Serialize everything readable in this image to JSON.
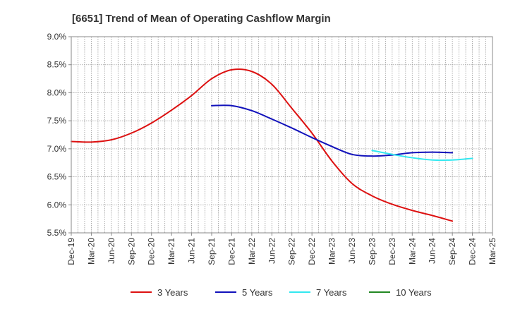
{
  "chart_data": {
    "type": "line",
    "title": "[6651]  Trend of Mean of Operating Cashflow Margin",
    "xlabel": "",
    "ylabel": "",
    "ylim": [
      5.5,
      9.0
    ],
    "y_ticks": [
      5.5,
      6.0,
      6.5,
      7.0,
      7.5,
      8.0,
      8.5,
      9.0
    ],
    "y_tick_labels": [
      "5.5%",
      "6.0%",
      "6.5%",
      "7.0%",
      "7.5%",
      "8.0%",
      "8.5%",
      "9.0%"
    ],
    "x_tick_labels": [
      "Dec-19",
      "Mar-20",
      "Jun-20",
      "Sep-20",
      "Dec-20",
      "Mar-21",
      "Jun-21",
      "Sep-21",
      "Dec-21",
      "Mar-22",
      "Jun-22",
      "Sep-22",
      "Dec-22",
      "Mar-23",
      "Jun-23",
      "Sep-23",
      "Dec-23",
      "Mar-24",
      "Jun-24",
      "Sep-24",
      "Dec-24",
      "Mar-25"
    ],
    "grid": true,
    "legend_position": "bottom",
    "series": [
      {
        "name": "3 Years",
        "color": "#dd1111",
        "start_index": 0,
        "values": [
          7.13,
          7.12,
          7.16,
          7.28,
          7.46,
          7.69,
          7.95,
          8.25,
          8.41,
          8.38,
          8.15,
          7.72,
          7.28,
          6.78,
          6.38,
          6.16,
          6.01,
          5.9,
          5.81,
          5.71
        ]
      },
      {
        "name": "5 Years",
        "color": "#1111bb",
        "start_index": 7,
        "values": [
          7.77,
          7.77,
          7.68,
          7.53,
          7.37,
          7.2,
          7.04,
          6.9,
          6.87,
          6.89,
          6.93,
          6.94,
          6.93
        ]
      },
      {
        "name": "7 Years",
        "color": "#33e8f0",
        "start_index": 15,
        "values": [
          6.97,
          6.9,
          6.84,
          6.8,
          6.8,
          6.83
        ]
      },
      {
        "name": "10 Years",
        "color": "#228822",
        "start_index": 0,
        "values": []
      }
    ]
  }
}
